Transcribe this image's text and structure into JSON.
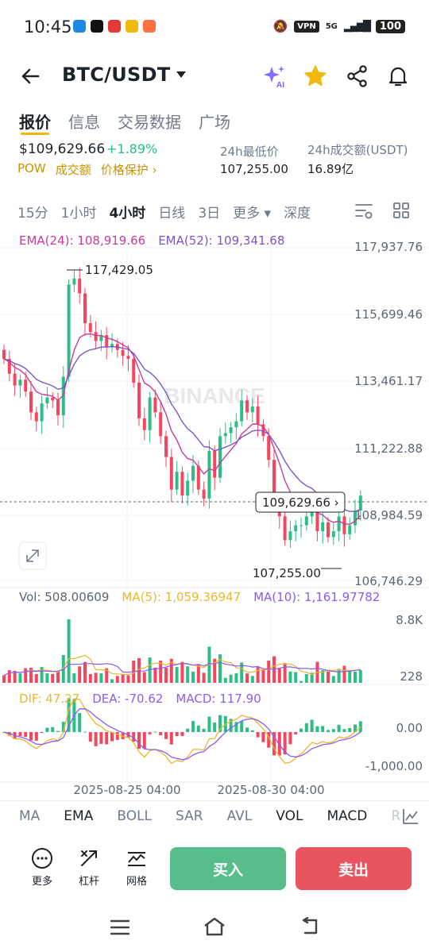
{
  "status": {
    "time": "10:45",
    "vpn": "VPN",
    "signal": "5G",
    "battery": "100"
  },
  "header": {
    "pair": "BTC/USDT",
    "ai_label": "AI"
  },
  "tabs": [
    "报价",
    "信息",
    "交易数据",
    "广场"
  ],
  "ticker": {
    "price": "$109,629.66",
    "change": "+1.89%",
    "tag_pow": "POW",
    "tag_volume": "成交额",
    "tag_protect": "价格保护 ›",
    "low_label": "24h最低价",
    "low_value": "107,255.00",
    "turnover_label": "24h成交额(USDT)",
    "turnover_value": "16.89亿"
  },
  "intervals": [
    "15分",
    "1小时",
    "4小时",
    "日线",
    "3日",
    "更多 ▾",
    "深度"
  ],
  "legend": {
    "ema24": "EMA(24): 108,919.66",
    "ema52": "EMA(52): 109,341.68",
    "vol": "Vol: 508.00609",
    "ma5": "MA(5): 1,059.36947",
    "ma10": "MA(10): 1,161.97782",
    "dif": "DIF: 47.27",
    "dea": "DEA: -70.62",
    "macd": "MACD: 117.90"
  },
  "chart_data": {
    "type": "candlestick",
    "watermark": "BINANCE",
    "price_axis": [
      "117,937.76",
      "115,699.46",
      "113,461.17",
      "111,222.88",
      "108,984.59",
      "106,746.29"
    ],
    "price_range": [
      106746.29,
      117937.76
    ],
    "high_label": "117,429.05",
    "low_label": "107,255.00",
    "current_price_label": "109,629.66 ›",
    "volume_axis": [
      "8.8K",
      "228"
    ],
    "macd_axis": [
      "0.00",
      "-1,000.00"
    ],
    "time_labels": [
      "2025-08-25 04:00",
      "2025-08-30 04:00"
    ],
    "close_series": [
      114200,
      113700,
      113300,
      113500,
      113100,
      112400,
      112100,
      112700,
      112900,
      112800,
      112300,
      113600,
      116700,
      116900,
      116400,
      115400,
      115100,
      114800,
      115000,
      114600,
      114700,
      114500,
      114300,
      114200,
      113400,
      112200,
      111800,
      112900,
      112400,
      111600,
      110900,
      109800,
      110400,
      109600,
      110100,
      110600,
      109800,
      109500,
      111100,
      110200,
      111600,
      111700,
      111900,
      112100,
      112800,
      112400,
      112600,
      112000,
      111600,
      110800,
      109500,
      108900,
      108100,
      108400,
      108600,
      108600,
      108900,
      109200,
      108400,
      108700,
      108200,
      108400,
      108900,
      108300,
      108600,
      109100,
      109600
    ],
    "colors": {
      "up": "#2ebd85",
      "down": "#f6465d",
      "ema24": "#c83d9a",
      "ema52": "#7c55c9",
      "ma5": "#e9b82e",
      "ma10": "#8b5cf6",
      "dif": "#e9b82e",
      "dea": "#8b5cf6"
    }
  },
  "indicator_tabs": [
    "MA",
    "EMA",
    "BOLL",
    "SAR",
    "AVL",
    "VOL",
    "MACD",
    "R"
  ],
  "actions": {
    "more": "更多",
    "leverage": "杠杆",
    "grid": "网格",
    "buy": "买入",
    "sell": "卖出"
  }
}
